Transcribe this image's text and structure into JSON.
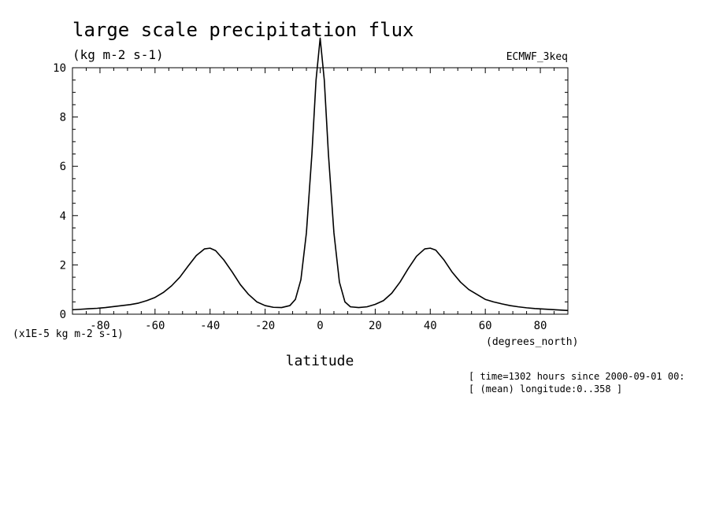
{
  "title": "large scale precipitation flux",
  "units": "(kg m-2 s-1)",
  "dataset": "ECMWF_3keq",
  "scale_note": "(x1E-5 kg m-2 s-1)",
  "x_units": "(degrees_north)",
  "footer": {
    "line1": "[ time=1302 hours since 2000-09-01 00:",
    "line2": "[ (mean) longitude:0..358 ]"
  },
  "chart_data": {
    "type": "line",
    "title": "large scale precipitation flux",
    "xlabel": "latitude",
    "ylabel": "(x1E-5 kg m-2 s-1)",
    "xlim": [
      -90,
      90
    ],
    "ylim": [
      0,
      10
    ],
    "xticks": [
      -80,
      -60,
      -40,
      -20,
      0,
      20,
      40,
      60,
      80
    ],
    "yticks": [
      0,
      2,
      4,
      6,
      8,
      10
    ],
    "grid": false,
    "series": [
      {
        "x": [
          -90,
          -87,
          -84,
          -81,
          -78,
          -75,
          -72,
          -69,
          -66,
          -63,
          -60,
          -57,
          -54,
          -51,
          -48,
          -45,
          -42,
          -40,
          -38,
          -35,
          -32,
          -29,
          -26,
          -23,
          -20,
          -17,
          -14,
          -11,
          -9,
          -7,
          -5,
          -3,
          -1.5,
          0,
          1.5,
          3,
          5,
          7,
          9,
          11,
          14,
          17,
          20,
          23,
          26,
          29,
          32,
          35,
          38,
          40,
          42,
          45,
          48,
          51,
          54,
          57,
          60,
          63,
          66,
          69,
          72,
          75,
          78,
          81,
          84,
          87,
          90
        ],
        "y": [
          0.18,
          0.2,
          0.22,
          0.24,
          0.27,
          0.31,
          0.35,
          0.39,
          0.45,
          0.55,
          0.68,
          0.88,
          1.15,
          1.5,
          1.95,
          2.38,
          2.65,
          2.68,
          2.58,
          2.2,
          1.72,
          1.2,
          0.8,
          0.5,
          0.35,
          0.28,
          0.27,
          0.35,
          0.6,
          1.4,
          3.3,
          6.5,
          9.5,
          11.2,
          9.5,
          6.5,
          3.3,
          1.3,
          0.5,
          0.3,
          0.27,
          0.3,
          0.4,
          0.55,
          0.85,
          1.3,
          1.85,
          2.35,
          2.65,
          2.68,
          2.6,
          2.2,
          1.7,
          1.3,
          1.0,
          0.8,
          0.6,
          0.5,
          0.42,
          0.35,
          0.3,
          0.26,
          0.23,
          0.21,
          0.19,
          0.17,
          0.15
        ]
      }
    ]
  }
}
